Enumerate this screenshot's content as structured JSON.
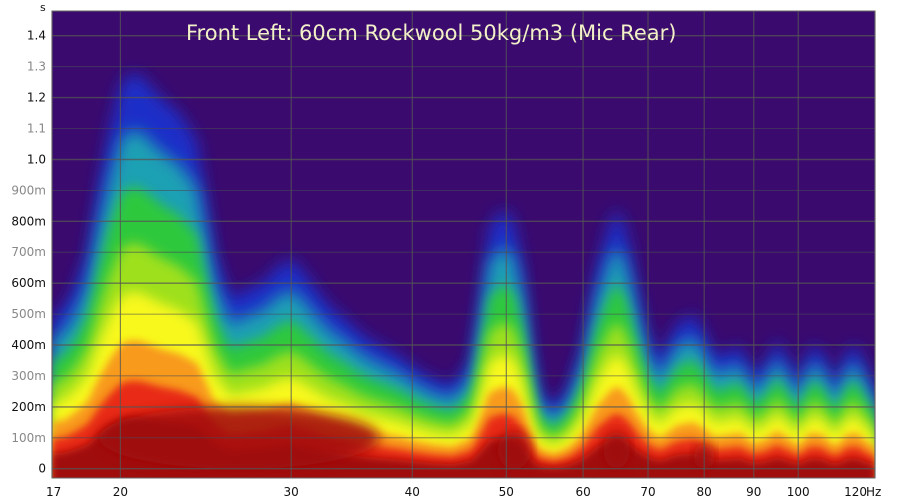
{
  "chart_data": {
    "type": "heatmap",
    "title": "Front Left: 60cm Rockwool 50kg/m3 (Mic Rear)",
    "x_unit": "Hz",
    "y_unit": "s",
    "x_scale": "log",
    "xlim": [
      17,
      120
    ],
    "ylim": [
      -0.03,
      1.48
    ],
    "x_ticks": [
      {
        "value": 17,
        "label": "17"
      },
      {
        "value": 20,
        "label": "20"
      },
      {
        "value": 30,
        "label": "30"
      },
      {
        "value": 40,
        "label": "40"
      },
      {
        "value": 50,
        "label": "50"
      },
      {
        "value": 60,
        "label": "60"
      },
      {
        "value": 70,
        "label": "70"
      },
      {
        "value": 80,
        "label": "80"
      },
      {
        "value": 90,
        "label": "90"
      },
      {
        "value": 100,
        "label": "100"
      },
      {
        "value": 120,
        "label": "120"
      }
    ],
    "y_ticks": [
      {
        "value": 0,
        "label": "0",
        "major": true
      },
      {
        "value": 0.1,
        "label": "100m",
        "major": false
      },
      {
        "value": 0.2,
        "label": "200m",
        "major": true
      },
      {
        "value": 0.3,
        "label": "300m",
        "major": false
      },
      {
        "value": 0.4,
        "label": "400m",
        "major": true
      },
      {
        "value": 0.5,
        "label": "500m",
        "major": false
      },
      {
        "value": 0.6,
        "label": "600m",
        "major": true
      },
      {
        "value": 0.7,
        "label": "700m",
        "major": false
      },
      {
        "value": 0.8,
        "label": "800m",
        "major": true
      },
      {
        "value": 0.9,
        "label": "900m",
        "major": false
      },
      {
        "value": 1.0,
        "label": "1.0",
        "major": true
      },
      {
        "value": 1.1,
        "label": "1.1",
        "major": false
      },
      {
        "value": 1.2,
        "label": "1.2",
        "major": true
      },
      {
        "value": 1.3,
        "label": "1.3",
        "major": false
      },
      {
        "value": 1.4,
        "label": "1.4",
        "major": true
      }
    ],
    "grid": true,
    "background_color": "#3a0a6e",
    "colormap": [
      "#3a0a6e",
      "#1a2ec8",
      "#1fa0b4",
      "#2ec83c",
      "#9ee01e",
      "#f8f81e",
      "#f89a1e",
      "#e82a14",
      "#a00f08"
    ],
    "decay_time_by_frequency": {
      "frequency": [
        17,
        17.5,
        18,
        18.5,
        19,
        19.5,
        20,
        20.5,
        21,
        22,
        23,
        24,
        25,
        26,
        27,
        28,
        29,
        30,
        31,
        32,
        33,
        34,
        35,
        36,
        37,
        38,
        39,
        40,
        42,
        44,
        46,
        47,
        48,
        49,
        50,
        51,
        52,
        53,
        54,
        56,
        58,
        60,
        62,
        64,
        65,
        66,
        67,
        68,
        70,
        72,
        75,
        78,
        80,
        82,
        85,
        87,
        90,
        93,
        95,
        98,
        100,
        103,
        106,
        108,
        110,
        112,
        115,
        118,
        120
      ],
      "decay_s": [
        0.5,
        0.52,
        0.6,
        0.7,
        0.92,
        1.1,
        1.24,
        1.28,
        1.27,
        1.2,
        1.15,
        1.06,
        0.7,
        0.55,
        0.58,
        0.6,
        0.65,
        0.68,
        0.63,
        0.57,
        0.52,
        0.49,
        0.45,
        0.42,
        0.4,
        0.38,
        0.36,
        0.33,
        0.29,
        0.27,
        0.35,
        0.55,
        0.78,
        0.82,
        0.84,
        0.79,
        0.65,
        0.4,
        0.25,
        0.2,
        0.26,
        0.4,
        0.65,
        0.8,
        0.84,
        0.8,
        0.72,
        0.6,
        0.43,
        0.35,
        0.47,
        0.5,
        0.44,
        0.36,
        0.38,
        0.4,
        0.3,
        0.35,
        0.42,
        0.34,
        0.28,
        0.4,
        0.38,
        0.3,
        0.29,
        0.38,
        0.4,
        0.3,
        0.28
      ]
    },
    "red_core_regions": [
      {
        "f_low": 19,
        "f_high": 37,
        "t_low": 0.0,
        "t_high": 0.2
      },
      {
        "f_low": 49,
        "f_high": 53,
        "t_low": 0.0,
        "t_high": 0.12
      },
      {
        "f_low": 63,
        "f_high": 67,
        "t_low": 0.0,
        "t_high": 0.12
      },
      {
        "f_low": 78,
        "f_high": 82,
        "t_low": 0.0,
        "t_high": 0.08
      }
    ]
  }
}
